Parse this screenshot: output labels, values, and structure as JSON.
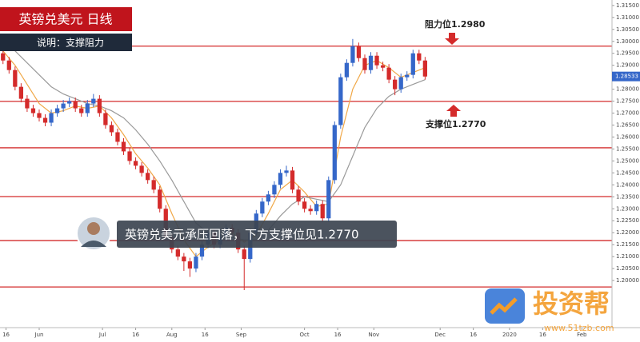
{
  "chart_data": {
    "type": "candlestick",
    "title": "英镑兑美元 日线",
    "subtitle": "说明：支撑阻力",
    "annotations": {
      "resistance": "阻力位1.2980",
      "support": "支撑位1.2770",
      "caption": "英镑兑美元承压回落，下方支撑位见1.2770"
    },
    "watermark": {
      "brand": "投资帮",
      "url": "www.51tzb.com"
    },
    "up_color": "#3567c9",
    "down_color": "#d42b2b",
    "candles": {
      "x": [
        0,
        2,
        4,
        6,
        8,
        10,
        12,
        14,
        16,
        18,
        20,
        22,
        24,
        26,
        28,
        30,
        32,
        34,
        36,
        38,
        40,
        42,
        44,
        46,
        48,
        50,
        52,
        54,
        56,
        58,
        60,
        62,
        64,
        66,
        68,
        70,
        72,
        74,
        76,
        78,
        80,
        82,
        84,
        86,
        88,
        90,
        92,
        94,
        96,
        98,
        100,
        102,
        104,
        106,
        108,
        110,
        112,
        114,
        116,
        118,
        120,
        122,
        124,
        126,
        128,
        130,
        132,
        134,
        136,
        138,
        140
      ],
      "open": [
        1.295,
        1.292,
        1.288,
        1.281,
        1.276,
        1.272,
        1.27,
        1.268,
        1.266,
        1.27,
        1.272,
        1.274,
        1.275,
        1.272,
        1.27,
        1.274,
        1.276,
        1.27,
        1.265,
        1.262,
        1.258,
        1.254,
        1.25,
        1.248,
        1.245,
        1.242,
        1.238,
        1.23,
        1.218,
        1.213,
        1.21,
        1.208,
        1.205,
        1.21,
        1.215,
        1.22,
        1.215,
        1.218,
        1.222,
        1.22,
        1.213,
        1.209,
        1.22,
        1.228,
        1.233,
        1.236,
        1.24,
        1.245,
        1.246,
        1.238,
        1.233,
        1.23,
        1.229,
        1.232,
        1.226,
        1.242,
        1.265,
        1.285,
        1.291,
        1.298,
        1.293,
        1.288,
        1.294,
        1.29,
        1.289,
        1.284,
        1.28,
        1.285,
        1.286,
        1.295,
        1.292
      ],
      "high": [
        1.2965,
        1.2935,
        1.2895,
        1.2825,
        1.2775,
        1.2735,
        1.2715,
        1.2695,
        1.2715,
        1.2735,
        1.2755,
        1.2765,
        1.2765,
        1.2735,
        1.2755,
        1.278,
        1.2775,
        1.2715,
        1.2665,
        1.2635,
        1.2595,
        1.2555,
        1.2515,
        1.2495,
        1.2465,
        1.2435,
        1.2395,
        1.2315,
        1.2195,
        1.2145,
        1.2115,
        1.2095,
        1.2115,
        1.2165,
        1.2215,
        1.2215,
        1.2195,
        1.2235,
        1.2235,
        1.2215,
        1.2145,
        1.2215,
        1.2295,
        1.2345,
        1.2375,
        1.2415,
        1.2465,
        1.248,
        1.2475,
        1.2395,
        1.2345,
        1.2315,
        1.2335,
        1.2335,
        1.2435,
        1.2665,
        1.2865,
        1.2925,
        1.301,
        1.2995,
        1.2945,
        1.2955,
        1.2955,
        1.2915,
        1.2905,
        1.2855,
        1.2865,
        1.2875,
        1.2965,
        1.2965,
        1.2935
      ],
      "low": [
        1.2905,
        1.2865,
        1.2795,
        1.2745,
        1.2705,
        1.2685,
        1.2665,
        1.2645,
        1.2645,
        1.2685,
        1.2705,
        1.2725,
        1.2705,
        1.2685,
        1.2685,
        1.2725,
        1.2685,
        1.2635,
        1.2605,
        1.2565,
        1.2525,
        1.2485,
        1.2465,
        1.2435,
        1.2405,
        1.2365,
        1.2285,
        1.2165,
        1.2115,
        1.2085,
        1.204,
        1.2015,
        1.2035,
        1.2085,
        1.2135,
        1.2135,
        1.2135,
        1.2165,
        1.2185,
        1.2115,
        1.196,
        1.2075,
        1.2185,
        1.2265,
        1.2315,
        1.2345,
        1.2385,
        1.2435,
        1.2365,
        1.2315,
        1.2285,
        1.2275,
        1.2275,
        1.2245,
        1.2245,
        1.2405,
        1.2635,
        1.2835,
        1.2895,
        1.2915,
        1.2865,
        1.2865,
        1.2885,
        1.2875,
        1.2825,
        1.2775,
        1.2785,
        1.2835,
        1.2845,
        1.2905,
        1.284
      ],
      "close": [
        1.292,
        1.288,
        1.281,
        1.276,
        1.272,
        1.27,
        1.268,
        1.266,
        1.27,
        1.272,
        1.274,
        1.275,
        1.272,
        1.27,
        1.274,
        1.276,
        1.27,
        1.265,
        1.262,
        1.258,
        1.254,
        1.25,
        1.248,
        1.245,
        1.242,
        1.238,
        1.23,
        1.218,
        1.213,
        1.21,
        1.208,
        1.205,
        1.21,
        1.215,
        1.22,
        1.215,
        1.218,
        1.222,
        1.22,
        1.213,
        1.209,
        1.22,
        1.228,
        1.233,
        1.236,
        1.24,
        1.245,
        1.246,
        1.238,
        1.233,
        1.23,
        1.229,
        1.232,
        1.226,
        1.242,
        1.265,
        1.285,
        1.291,
        1.298,
        1.293,
        1.288,
        1.294,
        1.29,
        1.289,
        1.284,
        1.28,
        1.285,
        1.286,
        1.295,
        1.292,
        1.2853
      ]
    },
    "lines": [
      {
        "color": "#f0a848",
        "x": [
          0,
          4,
          8,
          12,
          16,
          20,
          24,
          28,
          32,
          36,
          40,
          44,
          48,
          52,
          56,
          60,
          64,
          68,
          72,
          76,
          80,
          84,
          88,
          92,
          96,
          100,
          104,
          108,
          112,
          116,
          120,
          124,
          128,
          132,
          136,
          140
        ],
        "values": [
          1.296,
          1.29,
          1.282,
          1.274,
          1.27,
          1.271,
          1.273,
          1.272,
          1.273,
          1.268,
          1.261,
          1.253,
          1.247,
          1.24,
          1.228,
          1.217,
          1.21,
          1.214,
          1.217,
          1.22,
          1.216,
          1.219,
          1.228,
          1.238,
          1.242,
          1.237,
          1.231,
          1.232,
          1.26,
          1.28,
          1.29,
          1.292,
          1.289,
          1.285,
          1.287,
          1.289
        ]
      },
      {
        "color": "#9a9a9a",
        "x": [
          0,
          4,
          8,
          12,
          16,
          20,
          24,
          28,
          32,
          36,
          40,
          44,
          48,
          52,
          56,
          60,
          64,
          68,
          72,
          76,
          80,
          84,
          88,
          92,
          96,
          100,
          104,
          108,
          112,
          116,
          120,
          124,
          128,
          132,
          136,
          140
        ],
        "values": [
          1.3,
          1.296,
          1.291,
          1.286,
          1.281,
          1.278,
          1.276,
          1.274,
          1.273,
          1.271,
          1.268,
          1.263,
          1.257,
          1.25,
          1.242,
          1.233,
          1.224,
          1.22,
          1.218,
          1.218,
          1.217,
          1.217,
          1.221,
          1.227,
          1.232,
          1.235,
          1.234,
          1.233,
          1.24,
          1.252,
          1.264,
          1.272,
          1.277,
          1.28,
          1.282,
          1.284
        ]
      }
    ],
    "levels": [
      1.298,
      1.2749,
      1.2555,
      1.2351,
      1.2167,
      1.1973
    ],
    "level_color": "#d42b2b",
    "last_price": {
      "value": 1.28533,
      "label": "1.28533"
    },
    "xlim": [
      -1,
      202
    ],
    "ylim": [
      1.1803,
      1.3173
    ],
    "xticks": [
      {
        "value": 1,
        "label": "16"
      },
      {
        "value": 12,
        "label": "Jun"
      },
      {
        "value": 33,
        "label": "Jul"
      },
      {
        "value": 44,
        "label": "16"
      },
      {
        "value": 56,
        "label": "Aug"
      },
      {
        "value": 67,
        "label": "16"
      },
      {
        "value": 79,
        "label": "Sep"
      },
      {
        "value": 100,
        "label": "Oct"
      },
      {
        "value": 111,
        "label": "16"
      },
      {
        "value": 123,
        "label": "Nov"
      },
      {
        "value": 145,
        "label": "Dec"
      },
      {
        "value": 156,
        "label": "16"
      },
      {
        "value": 168,
        "label": "2020"
      },
      {
        "value": 179,
        "label": "16"
      },
      {
        "value": 192,
        "label": "Feb"
      }
    ],
    "yticks": [
      {
        "value": 1.2,
        "label": "1.20000"
      },
      {
        "value": 1.205,
        "label": "1.20500"
      },
      {
        "value": 1.21,
        "label": "1.21000"
      },
      {
        "value": 1.215,
        "label": "1.21500"
      },
      {
        "value": 1.22,
        "label": "1.22000"
      },
      {
        "value": 1.225,
        "label": "1.22500"
      },
      {
        "value": 1.23,
        "label": "1.23000"
      },
      {
        "value": 1.235,
        "label": "1.23500"
      },
      {
        "value": 1.24,
        "label": "1.24000"
      },
      {
        "value": 1.245,
        "label": "1.24500"
      },
      {
        "value": 1.25,
        "label": "1.25000"
      },
      {
        "value": 1.255,
        "label": "1.25500"
      },
      {
        "value": 1.26,
        "label": "1.26000"
      },
      {
        "value": 1.265,
        "label": "1.26500"
      },
      {
        "value": 1.27,
        "label": "1.27000"
      },
      {
        "value": 1.275,
        "label": "1.27500"
      },
      {
        "value": 1.28,
        "label": "1.28000"
      },
      {
        "value": 1.285,
        "label": "1.28500"
      },
      {
        "value": 1.29,
        "label": "1.29000"
      },
      {
        "value": 1.295,
        "label": "1.29500"
      },
      {
        "value": 1.3,
        "label": "1.30000"
      },
      {
        "value": 1.305,
        "label": "1.30500"
      },
      {
        "value": 1.31,
        "label": "1.31000"
      },
      {
        "value": 1.315,
        "label": "1.31500"
      }
    ]
  }
}
